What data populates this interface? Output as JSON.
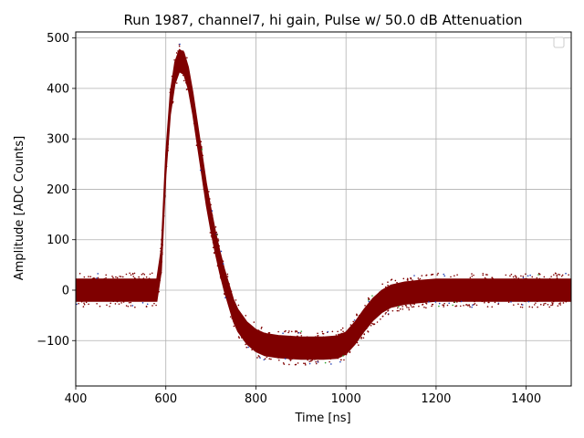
{
  "chart_data": {
    "type": "scatter",
    "title": "Run 1987, channel7, hi gain, Pulse w/ 50.0 dB Attenuation",
    "xlabel": "Time [ns]",
    "ylabel": "Amplitude [ADC Counts]",
    "xlim": [
      400,
      1500
    ],
    "ylim": [
      -190,
      512
    ],
    "xticks": [
      400,
      600,
      800,
      1000,
      1200,
      1400
    ],
    "yticks": [
      -100,
      0,
      100,
      200,
      300,
      400,
      500
    ],
    "grid": true,
    "legend": "top-right, empty",
    "colors": {
      "main": "#7f0000",
      "accent1": "#1f3fb4",
      "accent2": "#2ca02c",
      "grid": "#b0b0b0"
    },
    "series": [
      {
        "color": "#7f0000",
        "noise_band": 22,
        "x": [
          400,
          580,
          590,
          600,
          610,
          620,
          630,
          640,
          650,
          660,
          670,
          680,
          690,
          700,
          710,
          720,
          730,
          740,
          750,
          760,
          780,
          800,
          820,
          850,
          900,
          950,
          980,
          1000,
          1020,
          1040,
          1060,
          1080,
          1100,
          1130,
          1160,
          1200,
          1300,
          1400,
          1500
        ],
        "y": [
          0,
          0,
          60,
          250,
          370,
          430,
          455,
          450,
          420,
          370,
          310,
          250,
          190,
          140,
          95,
          55,
          20,
          -10,
          -40,
          -60,
          -85,
          -100,
          -108,
          -112,
          -115,
          -115,
          -113,
          -105,
          -85,
          -60,
          -38,
          -22,
          -12,
          -6,
          -3,
          0,
          0,
          0,
          0
        ]
      }
    ]
  }
}
